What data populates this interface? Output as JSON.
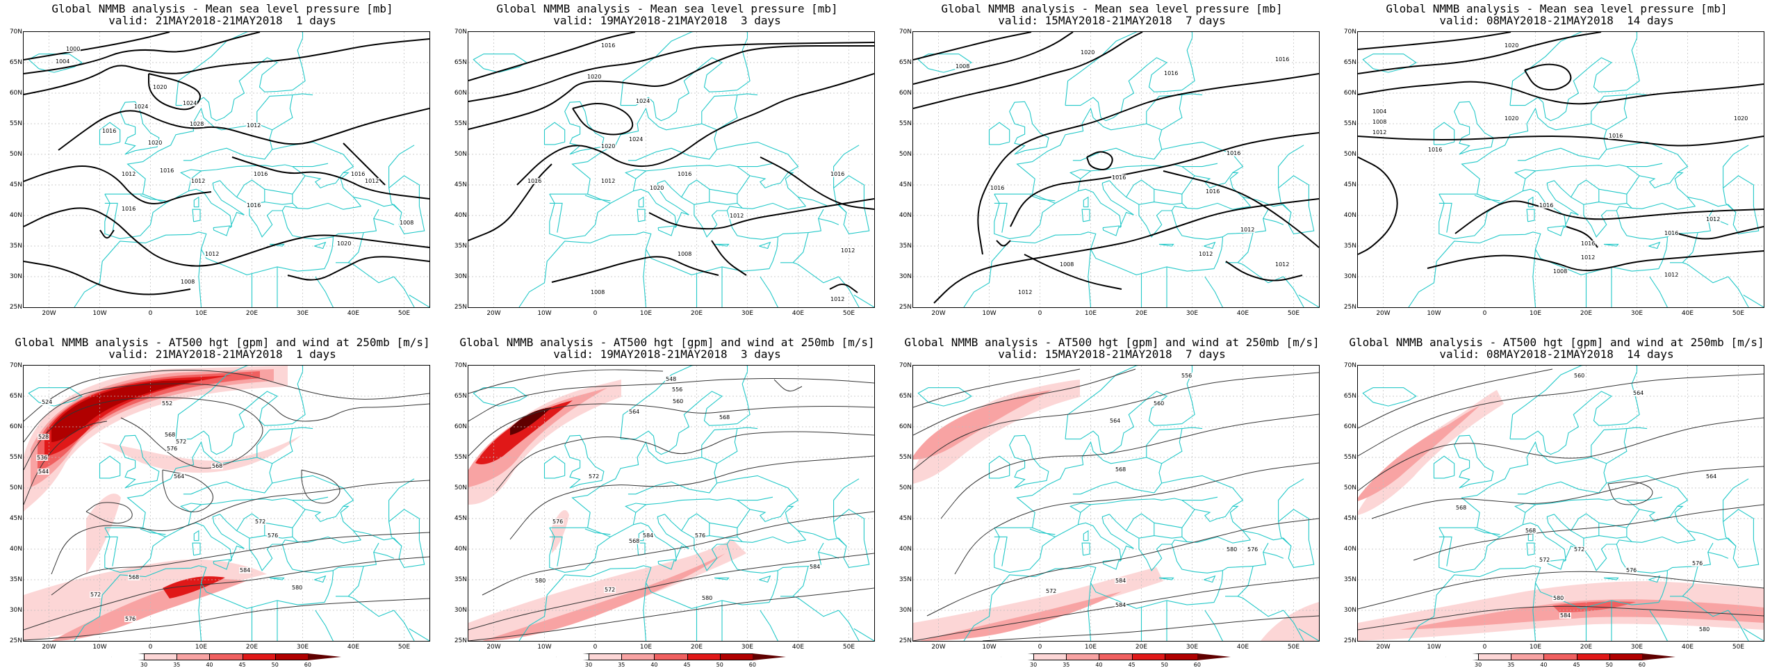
{
  "panels": [
    {
      "title": "Global NMMB analysis - Mean sea level pressure [mb]",
      "valid": "valid: 21MAY2018-21MAY2018  1 days",
      "type": "mslp",
      "variant": 0
    },
    {
      "title": "Global NMMB analysis - Mean sea level pressure [mb]",
      "valid": "valid: 19MAY2018-21MAY2018  3 days",
      "type": "mslp",
      "variant": 1
    },
    {
      "title": "Global NMMB analysis - Mean sea level pressure [mb]",
      "valid": "valid: 15MAY2018-21MAY2018  7 days",
      "type": "mslp",
      "variant": 2
    },
    {
      "title": "Global NMMB analysis - Mean sea level pressure [mb]",
      "valid": "valid: 08MAY2018-21MAY2018  14 days",
      "type": "mslp",
      "variant": 3
    },
    {
      "title": "Global NMMB analysis - AT500 hgt [gpm] and wind at 250mb [m/s]",
      "valid": "valid: 21MAY2018-21MAY2018  1 days",
      "type": "z500",
      "variant": 0
    },
    {
      "title": "Global NMMB analysis - AT500 hgt [gpm] and wind at 250mb [m/s]",
      "valid": "valid: 19MAY2018-21MAY2018  3 days",
      "type": "z500",
      "variant": 1
    },
    {
      "title": "Global NMMB analysis - AT500 hgt [gpm] and wind at 250mb [m/s]",
      "valid": "valid: 15MAY2018-21MAY2018  7 days",
      "type": "z500",
      "variant": 2
    },
    {
      "title": "Global NMMB analysis - AT500 hgt [gpm] and wind at 250mb [m/s]",
      "valid": "valid: 08MAY2018-21MAY2018  14 days",
      "type": "z500",
      "variant": 3
    }
  ],
  "axes": {
    "lat_labels": [
      "70N",
      "65N",
      "60N",
      "55N",
      "50N",
      "45N",
      "40N",
      "35N",
      "30N",
      "25N"
    ],
    "lon_labels": [
      "20W",
      "10W",
      "0",
      "10E",
      "20E",
      "30E",
      "40E",
      "50E"
    ]
  },
  "colorbar": {
    "labels": [
      "30",
      "35",
      "40",
      "45",
      "50",
      "60"
    ],
    "colors": [
      "#ffffff",
      "#fcd6d6",
      "#f8a3a3",
      "#f06060",
      "#e01818",
      "#b00000",
      "#600000"
    ]
  },
  "colors": {
    "coast": "#22c8c8",
    "contour": "#000000",
    "z500_contour": "#444444"
  },
  "mslp_labels": [
    [
      "1000",
      "1004",
      "1016",
      "1020",
      "1024",
      "1028",
      "1024",
      "1020",
      "1016",
      "1012",
      "1008",
      "1012",
      "1016",
      "1016",
      "1012",
      "1020",
      "1016",
      "1012",
      "1008",
      "1012",
      "1016"
    ],
    [
      "1016",
      "1020",
      "1024",
      "1020",
      "1024",
      "1016",
      "1012",
      "1016",
      "1008",
      "1012",
      "1008",
      "1016",
      "1012",
      "1020",
      "1012"
    ],
    [
      "1008",
      "1020",
      "1016",
      "1016",
      "1016",
      "1016",
      "1016",
      "1012",
      "1012",
      "1008",
      "1012",
      "1012",
      "1016"
    ],
    [
      "1004",
      "1008",
      "1012",
      "1016",
      "1020",
      "1020",
      "1020",
      "1016",
      "1016",
      "1012",
      "1016",
      "1012",
      "1008",
      "1012",
      "1016"
    ]
  ],
  "z500_labels": [
    [
      "524",
      "528",
      "536",
      "544",
      "552",
      "568",
      "572",
      "576",
      "564",
      "568",
      "572",
      "576",
      "580",
      "584",
      "568",
      "576",
      "572"
    ],
    [
      "548",
      "556",
      "560",
      "564",
      "568",
      "572",
      "576",
      "580",
      "584",
      "568",
      "572",
      "576",
      "580",
      "584"
    ],
    [
      "556",
      "560",
      "564",
      "568",
      "572",
      "576",
      "580",
      "584",
      "584"
    ],
    [
      "560",
      "564",
      "568",
      "572",
      "576",
      "580",
      "584",
      "564",
      "568",
      "572",
      "576",
      "580"
    ]
  ]
}
